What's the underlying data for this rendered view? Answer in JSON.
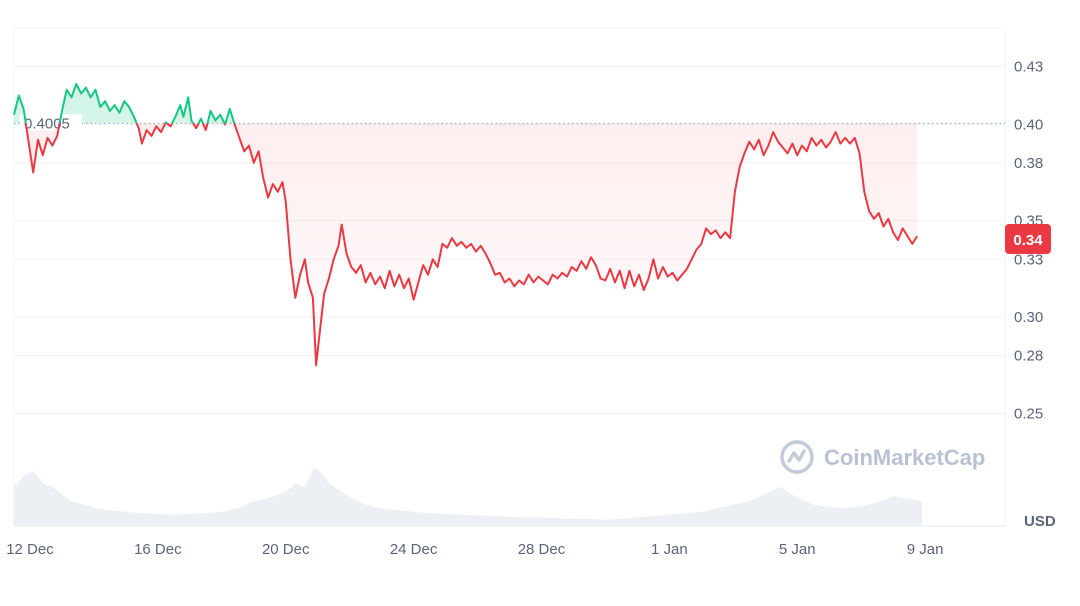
{
  "chart_data": {
    "type": "line",
    "title": "",
    "xlabel": "",
    "ylabel": "",
    "unit": "USD",
    "ylim": [
      0.23,
      0.45
    ],
    "xlim_days": [
      0,
      31
    ],
    "y_ticks": [
      0.25,
      0.28,
      0.3,
      0.33,
      0.35,
      0.38,
      0.4,
      0.43
    ],
    "x_ticks": [
      {
        "label": "12 Dec",
        "day": 0.5
      },
      {
        "label": "16 Dec",
        "day": 4.5
      },
      {
        "label": "20 Dec",
        "day": 8.5
      },
      {
        "label": "24 Dec",
        "day": 12.5
      },
      {
        "label": "28 Dec",
        "day": 16.5
      },
      {
        "label": "1 Jan",
        "day": 20.5
      },
      {
        "label": "5 Jan",
        "day": 24.5
      },
      {
        "label": "9 Jan",
        "day": 28.5
      }
    ],
    "reference_price": 0.4005,
    "reference_label": "0.4005",
    "current_price": 0.34,
    "current_label": "0.34",
    "colors": {
      "up": "#16c784",
      "down": "#ea3943",
      "badge": "#ea3943",
      "grid": "#eff2f5"
    },
    "series": [
      {
        "points": [
          [
            0.0,
            0.405
          ],
          [
            0.15,
            0.415
          ],
          [
            0.3,
            0.408
          ],
          [
            0.5,
            0.386
          ],
          [
            0.6,
            0.375
          ],
          [
            0.75,
            0.392
          ],
          [
            0.9,
            0.384
          ],
          [
            1.05,
            0.393
          ],
          [
            1.2,
            0.389
          ],
          [
            1.35,
            0.394
          ],
          [
            1.5,
            0.407
          ],
          [
            1.65,
            0.418
          ],
          [
            1.8,
            0.414
          ],
          [
            1.95,
            0.421
          ],
          [
            2.1,
            0.416
          ],
          [
            2.25,
            0.419
          ],
          [
            2.4,
            0.414
          ],
          [
            2.55,
            0.418
          ],
          [
            2.7,
            0.409
          ],
          [
            2.85,
            0.412
          ],
          [
            3.0,
            0.407
          ],
          [
            3.15,
            0.41
          ],
          [
            3.3,
            0.406
          ],
          [
            3.45,
            0.412
          ],
          [
            3.6,
            0.409
          ],
          [
            3.75,
            0.404
          ],
          [
            3.9,
            0.398
          ],
          [
            4.0,
            0.39
          ],
          [
            4.15,
            0.397
          ],
          [
            4.3,
            0.394
          ],
          [
            4.45,
            0.399
          ],
          [
            4.6,
            0.396
          ],
          [
            4.75,
            0.401
          ],
          [
            4.9,
            0.399
          ],
          [
            5.05,
            0.404
          ],
          [
            5.2,
            0.41
          ],
          [
            5.3,
            0.404
          ],
          [
            5.45,
            0.414
          ],
          [
            5.55,
            0.402
          ],
          [
            5.7,
            0.398
          ],
          [
            5.85,
            0.403
          ],
          [
            6.0,
            0.397
          ],
          [
            6.15,
            0.407
          ],
          [
            6.3,
            0.402
          ],
          [
            6.45,
            0.405
          ],
          [
            6.6,
            0.4
          ],
          [
            6.75,
            0.408
          ],
          [
            6.9,
            0.4
          ],
          [
            7.05,
            0.393
          ],
          [
            7.2,
            0.386
          ],
          [
            7.35,
            0.389
          ],
          [
            7.5,
            0.38
          ],
          [
            7.65,
            0.386
          ],
          [
            7.8,
            0.372
          ],
          [
            7.95,
            0.362
          ],
          [
            8.1,
            0.369
          ],
          [
            8.25,
            0.365
          ],
          [
            8.4,
            0.37
          ],
          [
            8.5,
            0.36
          ],
          [
            8.65,
            0.33
          ],
          [
            8.8,
            0.31
          ],
          [
            8.95,
            0.322
          ],
          [
            9.1,
            0.33
          ],
          [
            9.2,
            0.318
          ],
          [
            9.35,
            0.31
          ],
          [
            9.45,
            0.275
          ],
          [
            9.55,
            0.29
          ],
          [
            9.7,
            0.312
          ],
          [
            9.85,
            0.32
          ],
          [
            10.0,
            0.33
          ],
          [
            10.15,
            0.337
          ],
          [
            10.25,
            0.348
          ],
          [
            10.4,
            0.333
          ],
          [
            10.55,
            0.326
          ],
          [
            10.7,
            0.323
          ],
          [
            10.85,
            0.327
          ],
          [
            11.0,
            0.318
          ],
          [
            11.15,
            0.323
          ],
          [
            11.3,
            0.317
          ],
          [
            11.45,
            0.321
          ],
          [
            11.6,
            0.315
          ],
          [
            11.75,
            0.324
          ],
          [
            11.9,
            0.316
          ],
          [
            12.05,
            0.322
          ],
          [
            12.2,
            0.315
          ],
          [
            12.35,
            0.32
          ],
          [
            12.5,
            0.309
          ],
          [
            12.65,
            0.318
          ],
          [
            12.8,
            0.327
          ],
          [
            12.95,
            0.322
          ],
          [
            13.1,
            0.33
          ],
          [
            13.25,
            0.326
          ],
          [
            13.4,
            0.338
          ],
          [
            13.55,
            0.336
          ],
          [
            13.7,
            0.341
          ],
          [
            13.85,
            0.337
          ],
          [
            14.0,
            0.339
          ],
          [
            14.15,
            0.336
          ],
          [
            14.3,
            0.338
          ],
          [
            14.45,
            0.334
          ],
          [
            14.6,
            0.337
          ],
          [
            14.75,
            0.333
          ],
          [
            14.9,
            0.328
          ],
          [
            15.05,
            0.322
          ],
          [
            15.2,
            0.323
          ],
          [
            15.35,
            0.318
          ],
          [
            15.5,
            0.32
          ],
          [
            15.65,
            0.316
          ],
          [
            15.8,
            0.319
          ],
          [
            15.95,
            0.317
          ],
          [
            16.1,
            0.322
          ],
          [
            16.25,
            0.318
          ],
          [
            16.4,
            0.321
          ],
          [
            16.55,
            0.319
          ],
          [
            16.7,
            0.317
          ],
          [
            16.85,
            0.322
          ],
          [
            17.0,
            0.32
          ],
          [
            17.15,
            0.323
          ],
          [
            17.3,
            0.321
          ],
          [
            17.45,
            0.326
          ],
          [
            17.6,
            0.324
          ],
          [
            17.75,
            0.329
          ],
          [
            17.9,
            0.325
          ],
          [
            18.05,
            0.331
          ],
          [
            18.2,
            0.327
          ],
          [
            18.35,
            0.32
          ],
          [
            18.5,
            0.319
          ],
          [
            18.65,
            0.325
          ],
          [
            18.8,
            0.318
          ],
          [
            18.95,
            0.324
          ],
          [
            19.1,
            0.315
          ],
          [
            19.25,
            0.324
          ],
          [
            19.4,
            0.316
          ],
          [
            19.55,
            0.322
          ],
          [
            19.7,
            0.314
          ],
          [
            19.85,
            0.32
          ],
          [
            20.0,
            0.33
          ],
          [
            20.15,
            0.32
          ],
          [
            20.3,
            0.326
          ],
          [
            20.45,
            0.321
          ],
          [
            20.6,
            0.323
          ],
          [
            20.75,
            0.319
          ],
          [
            20.9,
            0.322
          ],
          [
            21.05,
            0.325
          ],
          [
            21.2,
            0.33
          ],
          [
            21.35,
            0.335
          ],
          [
            21.5,
            0.338
          ],
          [
            21.65,
            0.346
          ],
          [
            21.8,
            0.343
          ],
          [
            21.95,
            0.345
          ],
          [
            22.1,
            0.341
          ],
          [
            22.25,
            0.344
          ],
          [
            22.4,
            0.341
          ],
          [
            22.55,
            0.365
          ],
          [
            22.7,
            0.378
          ],
          [
            22.85,
            0.385
          ],
          [
            23.0,
            0.391
          ],
          [
            23.15,
            0.387
          ],
          [
            23.3,
            0.392
          ],
          [
            23.45,
            0.384
          ],
          [
            23.6,
            0.389
          ],
          [
            23.75,
            0.396
          ],
          [
            23.9,
            0.391
          ],
          [
            24.05,
            0.388
          ],
          [
            24.2,
            0.385
          ],
          [
            24.35,
            0.39
          ],
          [
            24.5,
            0.384
          ],
          [
            24.65,
            0.389
          ],
          [
            24.8,
            0.386
          ],
          [
            24.95,
            0.393
          ],
          [
            25.1,
            0.389
          ],
          [
            25.25,
            0.392
          ],
          [
            25.4,
            0.388
          ],
          [
            25.55,
            0.391
          ],
          [
            25.7,
            0.396
          ],
          [
            25.85,
            0.39
          ],
          [
            26.0,
            0.393
          ],
          [
            26.15,
            0.39
          ],
          [
            26.3,
            0.393
          ],
          [
            26.45,
            0.385
          ],
          [
            26.6,
            0.365
          ],
          [
            26.75,
            0.355
          ],
          [
            26.9,
            0.351
          ],
          [
            27.05,
            0.354
          ],
          [
            27.2,
            0.347
          ],
          [
            27.35,
            0.351
          ],
          [
            27.5,
            0.344
          ],
          [
            27.65,
            0.34
          ],
          [
            27.8,
            0.346
          ],
          [
            27.95,
            0.342
          ],
          [
            28.1,
            0.338
          ],
          [
            28.25,
            0.342
          ]
        ]
      }
    ],
    "volume": [
      [
        0.0,
        0.55
      ],
      [
        0.3,
        0.7
      ],
      [
        0.6,
        0.78
      ],
      [
        0.9,
        0.6
      ],
      [
        1.2,
        0.55
      ],
      [
        1.5,
        0.45
      ],
      [
        1.8,
        0.35
      ],
      [
        2.2,
        0.3
      ],
      [
        2.6,
        0.25
      ],
      [
        3.0,
        0.22
      ],
      [
        3.5,
        0.2
      ],
      [
        4.0,
        0.18
      ],
      [
        4.5,
        0.17
      ],
      [
        5.0,
        0.16
      ],
      [
        5.5,
        0.17
      ],
      [
        6.0,
        0.18
      ],
      [
        6.5,
        0.2
      ],
      [
        7.0,
        0.25
      ],
      [
        7.5,
        0.35
      ],
      [
        8.0,
        0.4
      ],
      [
        8.5,
        0.48
      ],
      [
        8.8,
        0.6
      ],
      [
        9.1,
        0.55
      ],
      [
        9.4,
        0.82
      ],
      [
        9.6,
        0.75
      ],
      [
        9.9,
        0.58
      ],
      [
        10.2,
        0.5
      ],
      [
        10.6,
        0.38
      ],
      [
        11.0,
        0.3
      ],
      [
        11.5,
        0.25
      ],
      [
        12.0,
        0.22
      ],
      [
        12.5,
        0.2
      ],
      [
        13.0,
        0.18
      ],
      [
        13.5,
        0.17
      ],
      [
        14.0,
        0.16
      ],
      [
        14.5,
        0.15
      ],
      [
        15.0,
        0.14
      ],
      [
        15.5,
        0.13
      ],
      [
        16.0,
        0.12
      ],
      [
        16.5,
        0.12
      ],
      [
        17.0,
        0.11
      ],
      [
        17.5,
        0.1
      ],
      [
        18.0,
        0.1
      ],
      [
        18.5,
        0.09
      ],
      [
        19.0,
        0.1
      ],
      [
        19.5,
        0.12
      ],
      [
        20.0,
        0.14
      ],
      [
        20.5,
        0.16
      ],
      [
        21.0,
        0.18
      ],
      [
        21.5,
        0.2
      ],
      [
        22.0,
        0.25
      ],
      [
        22.5,
        0.3
      ],
      [
        23.0,
        0.35
      ],
      [
        23.5,
        0.45
      ],
      [
        24.0,
        0.55
      ],
      [
        24.5,
        0.4
      ],
      [
        25.0,
        0.3
      ],
      [
        25.5,
        0.27
      ],
      [
        26.0,
        0.25
      ],
      [
        26.5,
        0.28
      ],
      [
        27.0,
        0.33
      ],
      [
        27.5,
        0.42
      ],
      [
        28.0,
        0.38
      ],
      [
        28.4,
        0.35
      ]
    ]
  },
  "watermark": "CoinMarketCap"
}
